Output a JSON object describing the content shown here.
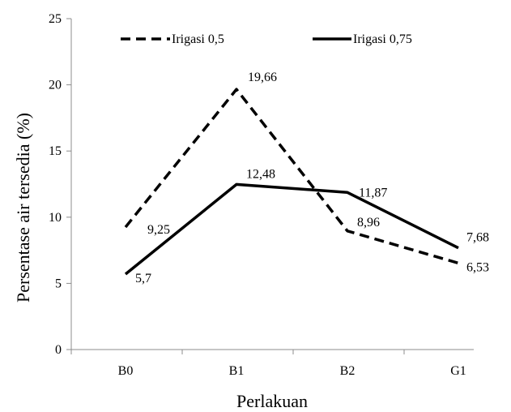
{
  "chart_data": {
    "type": "line",
    "categories": [
      "B0",
      "B1",
      "B2",
      "G1"
    ],
    "series": [
      {
        "name": "Irigasi 0,5",
        "values": [
          9.25,
          19.66,
          8.96,
          6.53
        ],
        "labels": [
          "9,25",
          "19,66",
          "8,96",
          "6,53"
        ],
        "style": "dashed",
        "color": "#000000"
      },
      {
        "name": "Irigasi 0,75",
        "values": [
          5.7,
          12.48,
          11.87,
          7.68
        ],
        "labels": [
          "5,7",
          "12,48",
          "11,87",
          "7,68"
        ],
        "style": "solid",
        "color": "#000000"
      }
    ],
    "xlabel": "Perlakuan",
    "ylabel": "Persentase air tersedia (%)",
    "ylim": [
      0,
      25
    ],
    "yticks": [
      0,
      5,
      10,
      15,
      20,
      25
    ],
    "grid": false,
    "legend": "top"
  }
}
